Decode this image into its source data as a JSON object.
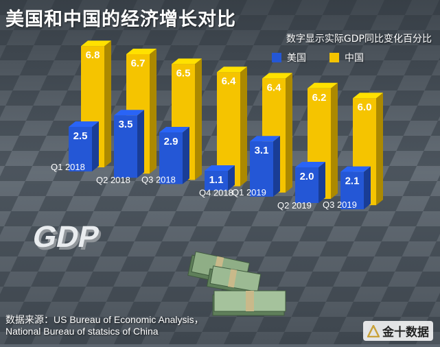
{
  "title": "美国和中国的经济增长对比",
  "subtitle": "数字显示实际GDP同比变化百分比",
  "source": {
    "line1": "数据来源：US Bureau of Economic Analysis，",
    "line2": "National Bureau of statsics of China"
  },
  "watermark": {
    "text": "金十数据",
    "icon": "jin10-logo-icon"
  },
  "decor": {
    "gdp_text": "GDP"
  },
  "colors": {
    "usa": "#2457d6",
    "china": "#f5c400",
    "background": "#5d6670"
  },
  "chart_data": {
    "type": "bar",
    "title": "美国和中国的经济增长对比",
    "subtitle": "数字显示实际GDP同比变化百分比",
    "categories": [
      "Q1 2018",
      "Q2 2018",
      "Q3 2018",
      "Q4 2018",
      "Q1 2019",
      "Q2 2019",
      "Q3 2019"
    ],
    "series": [
      {
        "name": "美国",
        "values": [
          2.5,
          3.5,
          2.9,
          1.1,
          3.1,
          2.0,
          2.1
        ]
      },
      {
        "name": "中国",
        "values": [
          6.8,
          6.7,
          6.5,
          6.4,
          6.4,
          6.2,
          6.0
        ]
      }
    ],
    "ylim": [
      0,
      7
    ],
    "grid": false,
    "legend": "top-right"
  }
}
